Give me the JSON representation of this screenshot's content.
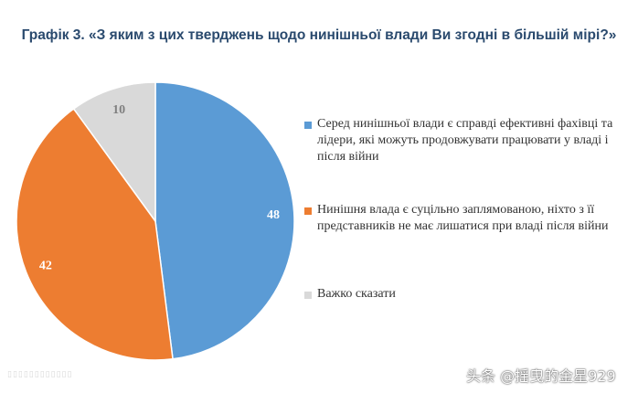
{
  "chart_data": {
    "type": "pie",
    "title": "Графік 3. «З яким з цих тверджень щодо нинішньої влади Ви згодні в більшій мірі?»",
    "categories": [
      "Серед нинішньої влади є справді ефективні фахівці та лідери, які можуть продовжувати працювати у владі і після війни",
      "Нинішня влада є суцільно заплямованою, ніхто з її представників не має лишатися при владі після війни",
      "Важко сказати"
    ],
    "values": [
      48,
      42,
      10
    ],
    "colors": [
      "#5b9bd5",
      "#ed7d31",
      "#d9d9d9"
    ],
    "legend_position": "right"
  },
  "watermark": "头条 @摇曳的金星929"
}
